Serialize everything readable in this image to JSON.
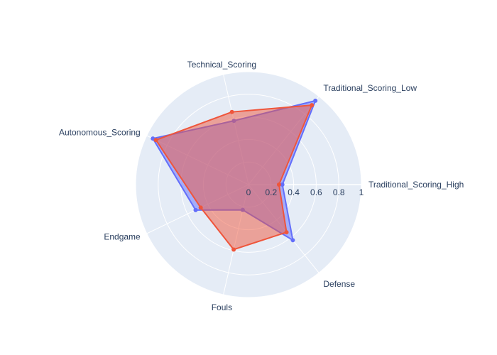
{
  "chart_data": {
    "type": "radar",
    "title": "",
    "categories": [
      "Traditional_Scoring_High",
      "Traditional_Scoring_Low",
      "Technical_Scoring",
      "Autonomous_Scoring",
      "Endgame",
      "Fouls",
      "Defense"
    ],
    "radial_range": [
      0,
      1
    ],
    "radial_ticks": [
      "0",
      "0.2",
      "0.4",
      "0.6",
      "0.8",
      "1"
    ],
    "grid": true,
    "series": [
      {
        "color": "#636efa",
        "values": [
          0.3,
          0.95,
          0.58,
          0.94,
          0.52,
          0.23,
          0.63
        ]
      },
      {
        "color": "#ef553b",
        "values": [
          0.27,
          0.9,
          0.66,
          0.91,
          0.47,
          0.59,
          0.54
        ]
      }
    ]
  },
  "colors": {
    "polar_background": "#e5ecf6",
    "grid": "#ffffff",
    "text": "#2a3f5f"
  }
}
